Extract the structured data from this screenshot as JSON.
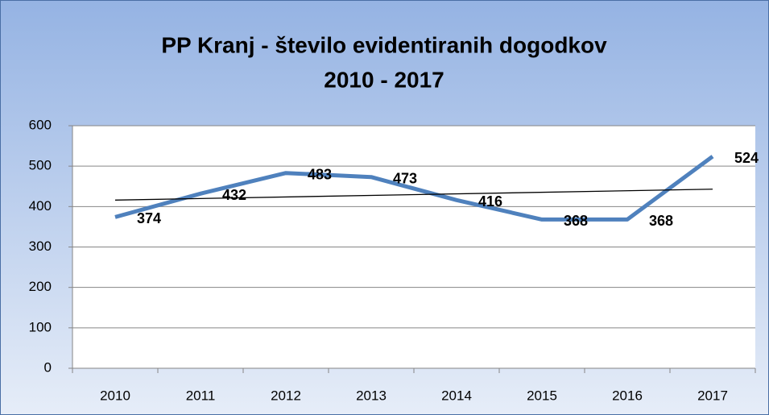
{
  "chart_data": {
    "type": "line",
    "title": "PP Kranj - število evidentiranih dogodkov",
    "subtitle": "2010 - 2017",
    "categories": [
      "2010",
      "2011",
      "2012",
      "2013",
      "2014",
      "2015",
      "2016",
      "2017"
    ],
    "series": [
      {
        "color": "#4f81bd",
        "values": [
          374,
          432,
          483,
          473,
          416,
          368,
          368,
          524
        ]
      }
    ],
    "trendline": {
      "color": "#000000",
      "values": [
        416,
        443
      ]
    },
    "ylim": [
      0,
      600
    ],
    "yticks": [
      0,
      100,
      200,
      300,
      400,
      500,
      600
    ],
    "grid": true
  }
}
